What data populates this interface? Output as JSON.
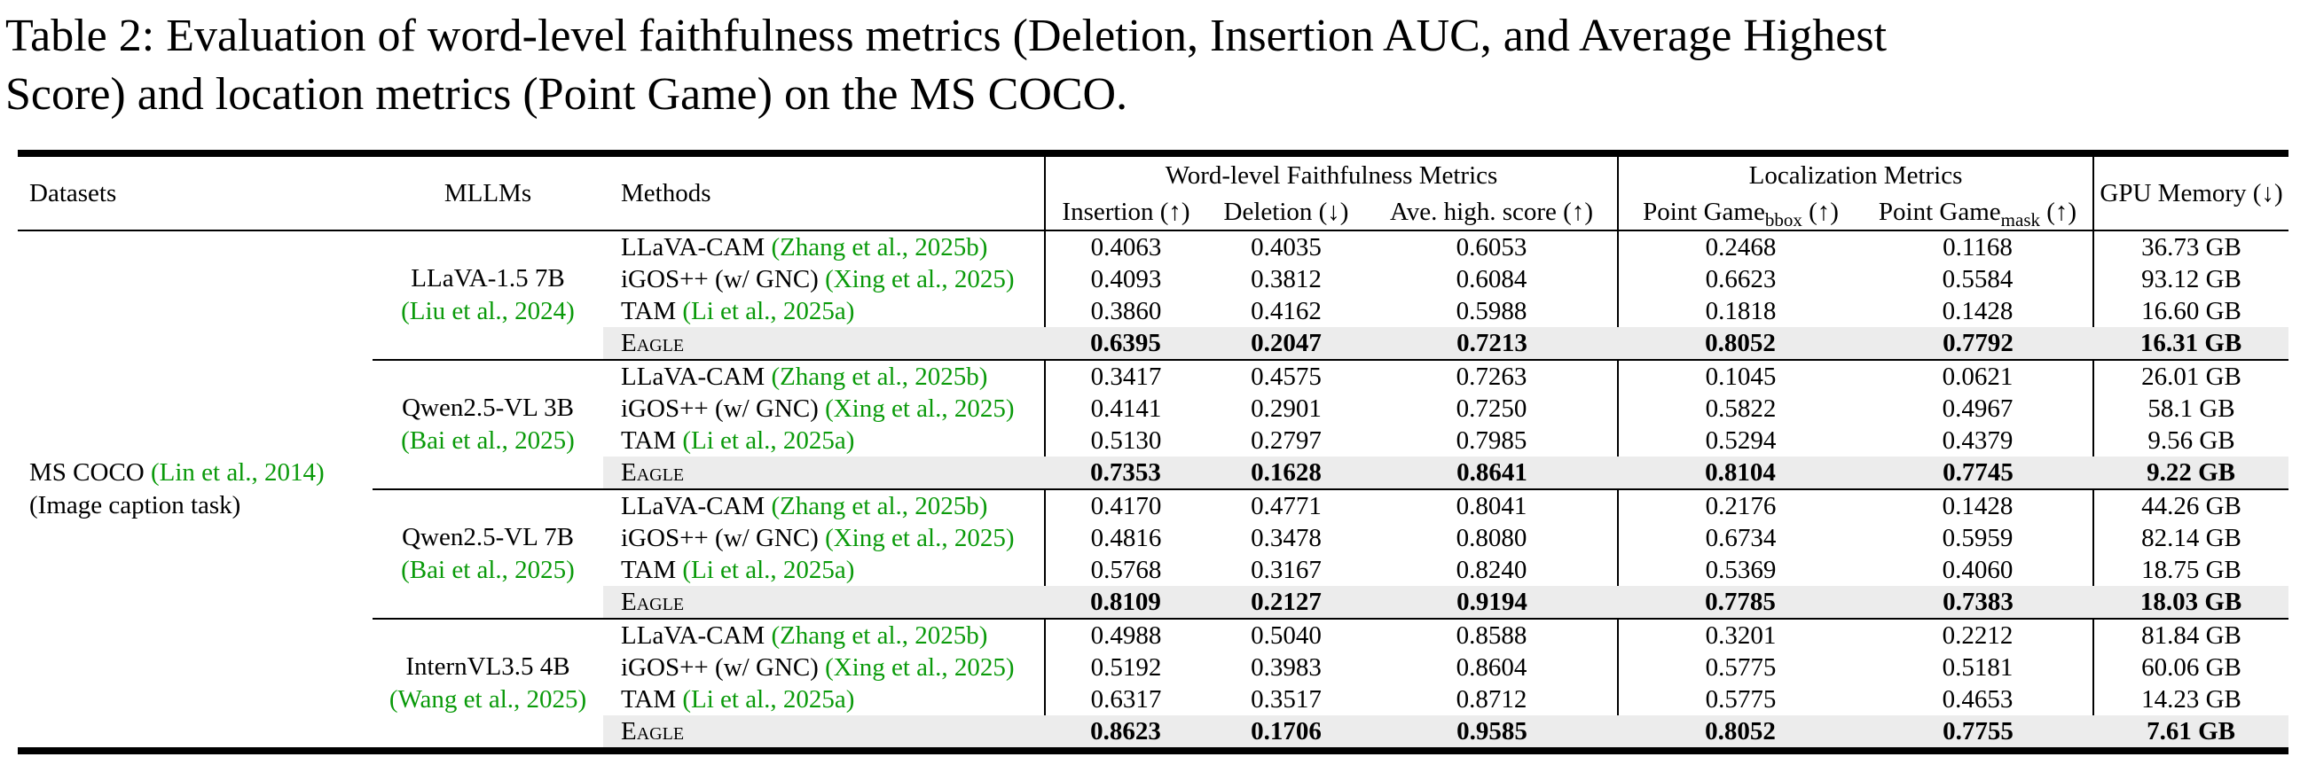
{
  "caption": {
    "line1": "Table 2: Evaluation of word-level faithfulness metrics (Deletion, Insertion AUC, and Average Highest",
    "line2": "Score) and location metrics (Point Game) on the MS COCO."
  },
  "colors": {
    "citation_green": "#0a9a0a",
    "highlight_gray": "#ececec"
  },
  "table": {
    "columns": {
      "datasets": "Datasets",
      "mllms": "MLLMs",
      "methods": "Methods",
      "word_group": "Word-level Faithfulness Metrics",
      "loc_group": "Localization Metrics",
      "insertion": "Insertion (↑)",
      "deletion": "Deletion (↓)",
      "avg_high": "Ave. high. score (↑)",
      "pg_bbox": {
        "main": "Point Game",
        "sub": "bbox",
        "arrow": " (↑)"
      },
      "pg_mask": {
        "main": "Point Game",
        "sub": "mask",
        "arrow": " (↑)"
      },
      "gpu": "GPU Memory (↓)"
    },
    "dataset_cell": {
      "name": "MS COCO ",
      "citation": "(Lin et al., 2014)",
      "task": "(Image caption task)"
    },
    "groups": [
      {
        "mllm": {
          "name": "LLaVA-1.5 7B",
          "citation": "(Liu et al., 2024)"
        },
        "rows": [
          {
            "method": "LLaVA-CAM ",
            "citation": "(Zhang et al., 2025b)",
            "smallcaps": false,
            "highlight": false,
            "values": [
              "0.4063",
              "0.4035",
              "0.6053",
              "0.2468",
              "0.1168",
              "36.73 GB"
            ]
          },
          {
            "method": "iGOS++ (w/ GNC) ",
            "citation": "(Xing et al., 2025)",
            "smallcaps": false,
            "highlight": false,
            "values": [
              "0.4093",
              "0.3812",
              "0.6084",
              "0.6623",
              "0.5584",
              "93.12 GB"
            ]
          },
          {
            "method": "TAM ",
            "citation": "(Li et al., 2025a)",
            "smallcaps": false,
            "highlight": false,
            "values": [
              "0.3860",
              "0.4162",
              "0.5988",
              "0.1818",
              "0.1428",
              "16.60 GB"
            ]
          },
          {
            "method": "Eagle",
            "citation": "",
            "smallcaps": true,
            "highlight": true,
            "values": [
              "0.6395",
              "0.2047",
              "0.7213",
              "0.8052",
              "0.7792",
              "16.31 GB"
            ]
          }
        ]
      },
      {
        "mllm": {
          "name": "Qwen2.5-VL 3B",
          "citation": "(Bai et al., 2025)"
        },
        "rows": [
          {
            "method": "LLaVA-CAM ",
            "citation": "(Zhang et al., 2025b)",
            "smallcaps": false,
            "highlight": false,
            "values": [
              "0.3417",
              "0.4575",
              "0.7263",
              "0.1045",
              "0.0621",
              "26.01 GB"
            ]
          },
          {
            "method": "iGOS++ (w/ GNC) ",
            "citation": "(Xing et al., 2025)",
            "smallcaps": false,
            "highlight": false,
            "values": [
              "0.4141",
              "0.2901",
              "0.7250",
              "0.5822",
              "0.4967",
              "58.1 GB"
            ]
          },
          {
            "method": "TAM ",
            "citation": "(Li et al., 2025a)",
            "smallcaps": false,
            "highlight": false,
            "values": [
              "0.5130",
              "0.2797",
              "0.7985",
              "0.5294",
              "0.4379",
              "9.56 GB"
            ]
          },
          {
            "method": "Eagle",
            "citation": "",
            "smallcaps": true,
            "highlight": true,
            "values": [
              "0.7353",
              "0.1628",
              "0.8641",
              "0.8104",
              "0.7745",
              "9.22 GB"
            ]
          }
        ]
      },
      {
        "mllm": {
          "name": "Qwen2.5-VL 7B",
          "citation": "(Bai et al., 2025)"
        },
        "rows": [
          {
            "method": "LLaVA-CAM ",
            "citation": "(Zhang et al., 2025b)",
            "smallcaps": false,
            "highlight": false,
            "values": [
              "0.4170",
              "0.4771",
              "0.8041",
              "0.2176",
              "0.1428",
              "44.26 GB"
            ]
          },
          {
            "method": "iGOS++ (w/ GNC) ",
            "citation": "(Xing et al., 2025)",
            "smallcaps": false,
            "highlight": false,
            "values": [
              "0.4816",
              "0.3478",
              "0.8080",
              "0.6734",
              "0.5959",
              "82.14 GB"
            ]
          },
          {
            "method": "TAM ",
            "citation": "(Li et al., 2025a)",
            "smallcaps": false,
            "highlight": false,
            "values": [
              "0.5768",
              "0.3167",
              "0.8240",
              "0.5369",
              "0.4060",
              "18.75 GB"
            ]
          },
          {
            "method": "Eagle",
            "citation": "",
            "smallcaps": true,
            "highlight": true,
            "values": [
              "0.8109",
              "0.2127",
              "0.9194",
              "0.7785",
              "0.7383",
              "18.03 GB"
            ]
          }
        ]
      },
      {
        "mllm": {
          "name": "InternVL3.5 4B",
          "citation": "(Wang et al., 2025)"
        },
        "rows": [
          {
            "method": "LLaVA-CAM ",
            "citation": "(Zhang et al., 2025b)",
            "smallcaps": false,
            "highlight": false,
            "values": [
              "0.4988",
              "0.5040",
              "0.8588",
              "0.3201",
              "0.2212",
              "81.84 GB"
            ]
          },
          {
            "method": "iGOS++ (w/ GNC) ",
            "citation": "(Xing et al., 2025)",
            "smallcaps": false,
            "highlight": false,
            "values": [
              "0.5192",
              "0.3983",
              "0.8604",
              "0.5775",
              "0.5181",
              "60.06 GB"
            ]
          },
          {
            "method": "TAM ",
            "citation": "(Li et al., 2025a)",
            "smallcaps": false,
            "highlight": false,
            "values": [
              "0.6317",
              "0.3517",
              "0.8712",
              "0.5775",
              "0.4653",
              "14.23 GB"
            ]
          },
          {
            "method": "Eagle",
            "citation": "",
            "smallcaps": true,
            "highlight": true,
            "values": [
              "0.8623",
              "0.1706",
              "0.9585",
              "0.8052",
              "0.7755",
              "7.61 GB"
            ]
          }
        ]
      }
    ]
  }
}
